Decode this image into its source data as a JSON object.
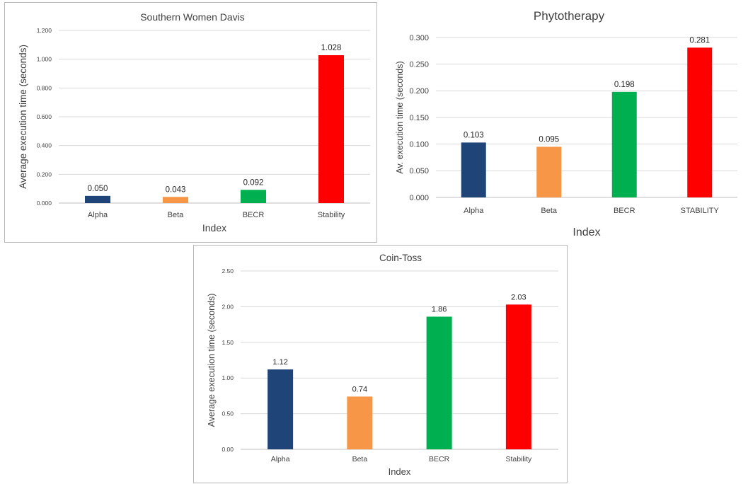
{
  "chart_data": [
    {
      "type": "bar",
      "title": "Southern Women Davis",
      "xlabel": "Index",
      "ylabel": "Average execution time (seconds)",
      "categories": [
        "Alpha",
        "Beta",
        "BECR",
        "Stability"
      ],
      "values": [
        0.05,
        0.043,
        0.092,
        1.028
      ],
      "value_labels": [
        "0.050",
        "0.043",
        "0.092",
        "1.028"
      ],
      "colors": [
        "#1f4478",
        "#f79646",
        "#00b050",
        "#ff0000"
      ],
      "ylim": [
        0,
        1.2
      ],
      "yticks": [
        0,
        0.2,
        0.4,
        0.6,
        0.8,
        1.0,
        1.2
      ],
      "ytick_labels": [
        "0.000",
        "0.200",
        "0.400",
        "0.600",
        "0.800",
        "1.000",
        "1.200"
      ],
      "grid": true,
      "legend": "none"
    },
    {
      "type": "bar",
      "title": "Phytotherapy",
      "xlabel": "Index",
      "ylabel": "Av. execution time (seconds)",
      "categories": [
        "Alpha",
        "Beta",
        "BECR",
        "STABILITY"
      ],
      "values": [
        0.103,
        0.095,
        0.198,
        0.281
      ],
      "value_labels": [
        "0.103",
        "0.095",
        "0.198",
        "0.281"
      ],
      "colors": [
        "#1f4478",
        "#f79646",
        "#00b050",
        "#ff0000"
      ],
      "ylim": [
        0,
        0.3
      ],
      "yticks": [
        0,
        0.05,
        0.1,
        0.15,
        0.2,
        0.25,
        0.3
      ],
      "ytick_labels": [
        "0.000",
        "0.050",
        "0.100",
        "0.150",
        "0.200",
        "0.250",
        "0.300"
      ],
      "grid": true,
      "legend": "none"
    },
    {
      "type": "bar",
      "title": "Coin-Toss",
      "xlabel": "Index",
      "ylabel": "Average execution time (seconds)",
      "categories": [
        "Alpha",
        "Beta",
        "BECR",
        "Stability"
      ],
      "values": [
        1.12,
        0.74,
        1.86,
        2.03
      ],
      "value_labels": [
        "1.12",
        "0.74",
        "1.86",
        "2.03"
      ],
      "colors": [
        "#1f4478",
        "#f79646",
        "#00b050",
        "#ff0000"
      ],
      "ylim": [
        0,
        2.5
      ],
      "yticks": [
        0,
        0.5,
        1.0,
        1.5,
        2.0,
        2.5
      ],
      "ytick_labels": [
        "0.00",
        "0.50",
        "1.00",
        "1.50",
        "2.00",
        "2.50"
      ],
      "grid": true,
      "legend": "none"
    }
  ]
}
